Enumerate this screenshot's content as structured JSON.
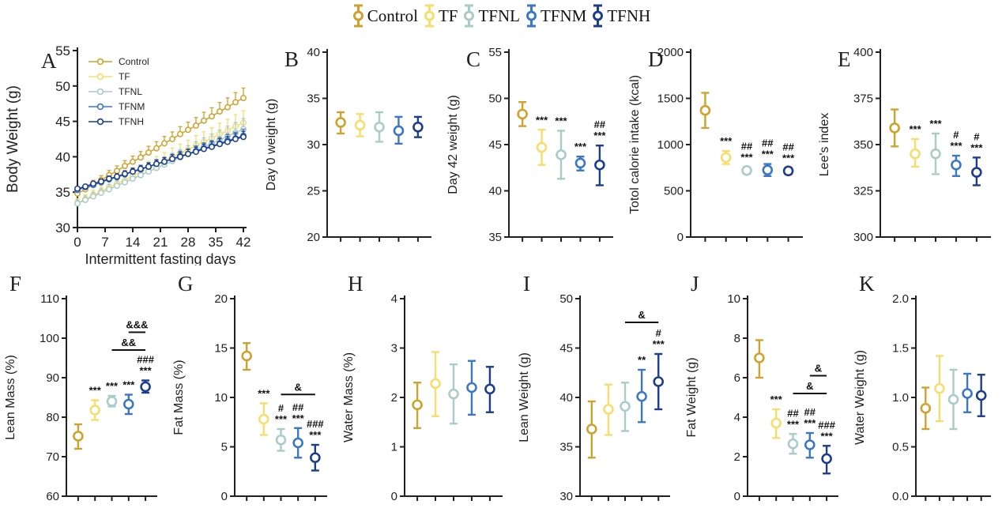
{
  "legend": {
    "items": [
      {
        "label": "Control",
        "color": "#CEA22C"
      },
      {
        "label": "TF",
        "color": "#F5DD6E"
      },
      {
        "label": "TFNL",
        "color": "#A9CBC9"
      },
      {
        "label": "TFNM",
        "color": "#3B77C2"
      },
      {
        "label": "TFNH",
        "color": "#1C3C8C"
      }
    ]
  },
  "colors": {
    "axis": "#231F20",
    "annotation": "#111111"
  },
  "chart_data": [
    {
      "id": "A",
      "type": "line",
      "ylabel": "Body Weight (g)",
      "xlabel": "Intermittent fasting days",
      "ylim": [
        30,
        55
      ],
      "ytick_vals": [
        30,
        35,
        40,
        45,
        50,
        55
      ],
      "ytick_labels": [
        "30",
        "35",
        "40",
        "45",
        "50",
        "55"
      ],
      "xlim": [
        0,
        42
      ],
      "xtick_vals": [
        0,
        7,
        14,
        21,
        28,
        35,
        42
      ],
      "xtick_labels": [
        "0",
        "7",
        "14",
        "21",
        "28",
        "35",
        "42"
      ],
      "x": [
        0,
        2,
        4,
        6,
        8,
        10,
        12,
        14,
        16,
        18,
        20,
        22,
        24,
        26,
        28,
        30,
        32,
        34,
        36,
        38,
        40,
        42
      ],
      "series": [
        {
          "name": "Control",
          "err_up": 1.4,
          "values": [
            34.8,
            35.4,
            36.1,
            36.7,
            37.4,
            38.0,
            38.7,
            39.3,
            39.9,
            40.6,
            41.2,
            41.9,
            42.5,
            43.2,
            43.8,
            44.4,
            45.1,
            45.7,
            46.4,
            47.0,
            47.7,
            48.3
          ]
        },
        {
          "name": "TF",
          "err_up": 1.7,
          "values": [
            33.5,
            34.0,
            34.6,
            35.1,
            35.7,
            36.2,
            36.7,
            37.3,
            37.8,
            38.3,
            38.9,
            39.4,
            40.0,
            40.5,
            41.0,
            41.6,
            42.1,
            42.6,
            43.2,
            43.7,
            44.3,
            44.8
          ]
        },
        {
          "name": "TFNL",
          "err_up": 1.5,
          "values": [
            33.4,
            33.9,
            34.4,
            34.9,
            35.4,
            35.9,
            36.4,
            36.9,
            37.4,
            37.9,
            38.4,
            38.9,
            39.4,
            39.9,
            40.4,
            40.9,
            41.4,
            41.9,
            42.4,
            42.9,
            43.4,
            43.9
          ]
        },
        {
          "name": "TFNM",
          "err_up": 0.9,
          "values": [
            35.3,
            35.7,
            36.0,
            36.4,
            36.8,
            37.1,
            37.5,
            37.9,
            38.2,
            38.6,
            39.0,
            39.3,
            39.7,
            40.1,
            40.4,
            40.8,
            41.2,
            41.5,
            41.9,
            42.3,
            42.6,
            43.0
          ]
        },
        {
          "name": "TFNH",
          "err_up": 0.8,
          "values": [
            35.5,
            35.8,
            36.2,
            36.5,
            36.9,
            37.2,
            37.6,
            37.9,
            38.3,
            38.6,
            39.0,
            39.3,
            39.7,
            40.0,
            40.4,
            40.7,
            41.1,
            41.4,
            41.8,
            42.1,
            42.5,
            42.8
          ]
        }
      ],
      "legend_in_panel": [
        "Control",
        "TF",
        "TFNL",
        "TFNM",
        "TFNH"
      ]
    },
    {
      "id": "B",
      "type": "scatter",
      "ylabel": "Day 0 weight (g)",
      "ylim": [
        20,
        40
      ],
      "ytick_vals": [
        20,
        25,
        30,
        35,
        40
      ],
      "ytick_labels": [
        "20",
        "25",
        "30",
        "35",
        "40"
      ],
      "groups": [
        "Control",
        "TF",
        "TFNL",
        "TFNM",
        "TFNH"
      ],
      "points": [
        {
          "group": "Control",
          "mean": 32.4,
          "lo": 31.2,
          "hi": 33.5,
          "sig": []
        },
        {
          "group": "TF",
          "mean": 32.1,
          "lo": 30.9,
          "hi": 33.3,
          "sig": []
        },
        {
          "group": "TFNL",
          "mean": 31.9,
          "lo": 30.3,
          "hi": 33.5,
          "sig": []
        },
        {
          "group": "TFNM",
          "mean": 31.5,
          "lo": 30.1,
          "hi": 33.0,
          "sig": []
        },
        {
          "group": "TFNH",
          "mean": 31.9,
          "lo": 30.8,
          "hi": 33.0,
          "sig": []
        }
      ],
      "brackets": []
    },
    {
      "id": "C",
      "type": "scatter",
      "ylabel": "Day 42 weight (g)",
      "ylim": [
        35,
        55
      ],
      "ytick_vals": [
        35,
        40,
        45,
        50,
        55
      ],
      "ytick_labels": [
        "35",
        "40",
        "45",
        "50",
        "55"
      ],
      "groups": [
        "Control",
        "TF",
        "TFNL",
        "TFNM",
        "TFNH"
      ],
      "points": [
        {
          "group": "Control",
          "mean": 48.3,
          "lo": 47.0,
          "hi": 49.6,
          "sig": []
        },
        {
          "group": "TF",
          "mean": 44.7,
          "lo": 42.8,
          "hi": 46.6,
          "sig": [
            "***"
          ]
        },
        {
          "group": "TFNL",
          "mean": 43.9,
          "lo": 41.3,
          "hi": 46.5,
          "sig": [
            "***"
          ]
        },
        {
          "group": "TFNM",
          "mean": 43.0,
          "lo": 42.2,
          "hi": 43.7,
          "sig": [
            "***"
          ]
        },
        {
          "group": "TFNH",
          "mean": 42.8,
          "lo": 40.6,
          "hi": 44.9,
          "sig": [
            "##",
            "***"
          ]
        }
      ],
      "brackets": []
    },
    {
      "id": "D",
      "type": "scatter",
      "ylabel": "Totol calorie intake (kcal)",
      "ylim": [
        0,
        2000
      ],
      "ytick_vals": [
        0,
        500,
        1000,
        1500,
        2000
      ],
      "ytick_labels": [
        "0",
        "500",
        "1000",
        "1500",
        "2000"
      ],
      "groups": [
        "Control",
        "TF",
        "TFNL",
        "TFNM",
        "TFNH"
      ],
      "points": [
        {
          "group": "Control",
          "mean": 1370,
          "lo": 1180,
          "hi": 1560,
          "sig": []
        },
        {
          "group": "TF",
          "mean": 860,
          "lo": 790,
          "hi": 930,
          "sig": [
            "***"
          ]
        },
        {
          "group": "TFNL",
          "mean": 720,
          "lo": 685,
          "hi": 755,
          "sig": [
            "##",
            "***"
          ]
        },
        {
          "group": "TFNM",
          "mean": 725,
          "lo": 660,
          "hi": 790,
          "sig": [
            "##",
            "***"
          ]
        },
        {
          "group": "TFNH",
          "mean": 715,
          "lo": 680,
          "hi": 750,
          "sig": [
            "##",
            "***"
          ]
        }
      ],
      "brackets": []
    },
    {
      "id": "E",
      "type": "scatter",
      "ylabel": "Lee's index",
      "ylim": [
        300,
        400
      ],
      "ytick_vals": [
        300,
        325,
        350,
        375,
        400
      ],
      "ytick_labels": [
        "300",
        "325",
        "350",
        "375",
        "400"
      ],
      "groups": [
        "Control",
        "TF",
        "TFNL",
        "TFNM",
        "TFNH"
      ],
      "points": [
        {
          "group": "Control",
          "mean": 359,
          "lo": 349,
          "hi": 369,
          "sig": []
        },
        {
          "group": "TF",
          "mean": 345,
          "lo": 338,
          "hi": 353,
          "sig": [
            "***"
          ]
        },
        {
          "group": "TFNL",
          "mean": 345,
          "lo": 334,
          "hi": 356,
          "sig": [
            "***"
          ]
        },
        {
          "group": "TFNM",
          "mean": 339,
          "lo": 333,
          "hi": 344,
          "sig": [
            "#",
            "***"
          ]
        },
        {
          "group": "TFNH",
          "mean": 335,
          "lo": 328,
          "hi": 343,
          "sig": [
            "#",
            "***"
          ]
        }
      ],
      "brackets": []
    },
    {
      "id": "F",
      "type": "scatter",
      "ylabel": "Lean Mass (%)",
      "ylim": [
        60,
        110
      ],
      "ytick_vals": [
        60,
        70,
        80,
        90,
        100,
        110
      ],
      "ytick_labels": [
        "60",
        "70",
        "80",
        "90",
        "100",
        "110"
      ],
      "groups": [
        "Control",
        "TF",
        "TFNL",
        "TFNM",
        "TFNH"
      ],
      "points": [
        {
          "group": "Control",
          "mean": 75.2,
          "lo": 72.0,
          "hi": 78.2,
          "sig": []
        },
        {
          "group": "TF",
          "mean": 81.8,
          "lo": 79.3,
          "hi": 84.3,
          "sig": [
            "***"
          ]
        },
        {
          "group": "TFNL",
          "mean": 84.0,
          "lo": 82.7,
          "hi": 85.4,
          "sig": [
            "***"
          ]
        },
        {
          "group": "TFNM",
          "mean": 83.3,
          "lo": 80.8,
          "hi": 85.7,
          "sig": [
            "***"
          ]
        },
        {
          "group": "TFNH",
          "mean": 87.7,
          "lo": 86.2,
          "hi": 89.3,
          "sig": [
            "###",
            "***"
          ]
        }
      ],
      "brackets": [
        {
          "from": 2,
          "to": 4,
          "y": 97,
          "label": "&&"
        },
        {
          "from": 3,
          "to": 4,
          "y": 101.5,
          "label": "&&&"
        }
      ]
    },
    {
      "id": "G",
      "type": "scatter",
      "ylabel": "Fat Mass (%)",
      "ylim": [
        0,
        20
      ],
      "ytick_vals": [
        0,
        5,
        10,
        15,
        20
      ],
      "ytick_labels": [
        "0",
        "5",
        "10",
        "15",
        "20"
      ],
      "groups": [
        "Control",
        "TF",
        "TFNL",
        "TFNM",
        "TFNH"
      ],
      "points": [
        {
          "group": "Control",
          "mean": 14.2,
          "lo": 12.8,
          "hi": 15.5,
          "sig": []
        },
        {
          "group": "TF",
          "mean": 7.8,
          "lo": 6.2,
          "hi": 9.4,
          "sig": [
            "***"
          ]
        },
        {
          "group": "TFNL",
          "mean": 5.7,
          "lo": 4.6,
          "hi": 6.8,
          "sig": [
            "#",
            "***"
          ]
        },
        {
          "group": "TFNM",
          "mean": 5.4,
          "lo": 3.9,
          "hi": 6.9,
          "sig": [
            "##",
            "***"
          ]
        },
        {
          "group": "TFNH",
          "mean": 3.9,
          "lo": 2.6,
          "hi": 5.2,
          "sig": [
            "###",
            "***"
          ]
        }
      ],
      "brackets": [
        {
          "from": 2,
          "to": 4,
          "y": 10.3,
          "label": "&"
        }
      ]
    },
    {
      "id": "H",
      "type": "scatter",
      "ylabel": "Water Mass (%)",
      "ylim": [
        0,
        4
      ],
      "ytick_vals": [
        0,
        1,
        2,
        3,
        4
      ],
      "ytick_labels": [
        "0",
        "1",
        "2",
        "3",
        "4"
      ],
      "groups": [
        "Control",
        "TF",
        "TFNL",
        "TFNM",
        "TFNH"
      ],
      "points": [
        {
          "group": "Control",
          "mean": 1.85,
          "lo": 1.38,
          "hi": 2.3,
          "sig": []
        },
        {
          "group": "TF",
          "mean": 2.28,
          "lo": 1.62,
          "hi": 2.92,
          "sig": []
        },
        {
          "group": "TFNL",
          "mean": 2.07,
          "lo": 1.47,
          "hi": 2.67,
          "sig": []
        },
        {
          "group": "TFNM",
          "mean": 2.2,
          "lo": 1.65,
          "hi": 2.74,
          "sig": []
        },
        {
          "group": "TFNH",
          "mean": 2.17,
          "lo": 1.7,
          "hi": 2.62,
          "sig": []
        }
      ],
      "brackets": []
    },
    {
      "id": "I",
      "type": "scatter",
      "ylabel": "Lean Weight (g)",
      "ylim": [
        30,
        50
      ],
      "ytick_vals": [
        30,
        35,
        40,
        45,
        50
      ],
      "ytick_labels": [
        "30",
        "35",
        "40",
        "45",
        "50"
      ],
      "groups": [
        "Control",
        "TF",
        "TFNL",
        "TFNM",
        "TFNH"
      ],
      "points": [
        {
          "group": "Control",
          "mean": 36.8,
          "lo": 33.9,
          "hi": 39.6,
          "sig": []
        },
        {
          "group": "TF",
          "mean": 38.8,
          "lo": 36.2,
          "hi": 41.3,
          "sig": []
        },
        {
          "group": "TFNL",
          "mean": 39.1,
          "lo": 36.6,
          "hi": 41.5,
          "sig": []
        },
        {
          "group": "TFNM",
          "mean": 40.1,
          "lo": 37.5,
          "hi": 42.8,
          "sig": [
            "**"
          ]
        },
        {
          "group": "TFNH",
          "mean": 41.6,
          "lo": 38.8,
          "hi": 44.4,
          "sig": [
            "#",
            "***"
          ]
        }
      ],
      "brackets": [
        {
          "from": 2,
          "to": 4,
          "y": 47.6,
          "label": "&"
        }
      ]
    },
    {
      "id": "J",
      "type": "scatter",
      "ylabel": "Fat Weight (g)",
      "ylim": [
        0,
        10
      ],
      "ytick_vals": [
        0,
        2,
        4,
        6,
        8,
        10
      ],
      "ytick_labels": [
        "0",
        "2",
        "4",
        "6",
        "8",
        "10"
      ],
      "groups": [
        "Control",
        "TF",
        "TFNL",
        "TFNM",
        "TFNH"
      ],
      "points": [
        {
          "group": "Control",
          "mean": 7.0,
          "lo": 6.0,
          "hi": 7.9,
          "sig": []
        },
        {
          "group": "TF",
          "mean": 3.7,
          "lo": 2.95,
          "hi": 4.4,
          "sig": [
            "***"
          ]
        },
        {
          "group": "TFNL",
          "mean": 2.65,
          "lo": 2.15,
          "hi": 3.15,
          "sig": [
            "##",
            "***"
          ]
        },
        {
          "group": "TFNM",
          "mean": 2.6,
          "lo": 1.95,
          "hi": 3.2,
          "sig": [
            "##",
            "***"
          ]
        },
        {
          "group": "TFNH",
          "mean": 1.9,
          "lo": 1.15,
          "hi": 2.55,
          "sig": [
            "###",
            "***"
          ]
        }
      ],
      "brackets": [
        {
          "from": 2,
          "to": 4,
          "y": 5.2,
          "label": "&"
        },
        {
          "from": 3,
          "to": 4,
          "y": 6.1,
          "label": "&"
        }
      ]
    },
    {
      "id": "K",
      "type": "scatter",
      "ylabel": "Water Weight (g)",
      "ylim": [
        0,
        2
      ],
      "ytick_vals": [
        0,
        0.5,
        1,
        1.5,
        2
      ],
      "ytick_labels": [
        "0.0",
        "0.5",
        "1.0",
        "1.5",
        "2.0"
      ],
      "groups": [
        "Control",
        "TF",
        "TFNL",
        "TFNM",
        "TFNH"
      ],
      "points": [
        {
          "group": "Control",
          "mean": 0.89,
          "lo": 0.68,
          "hi": 1.1,
          "sig": []
        },
        {
          "group": "TF",
          "mean": 1.09,
          "lo": 0.76,
          "hi": 1.42,
          "sig": []
        },
        {
          "group": "TFNL",
          "mean": 0.98,
          "lo": 0.68,
          "hi": 1.28,
          "sig": []
        },
        {
          "group": "TFNM",
          "mean": 1.04,
          "lo": 0.85,
          "hi": 1.24,
          "sig": []
        },
        {
          "group": "TFNH",
          "mean": 1.02,
          "lo": 0.81,
          "hi": 1.23,
          "sig": []
        }
      ],
      "brackets": []
    }
  ]
}
